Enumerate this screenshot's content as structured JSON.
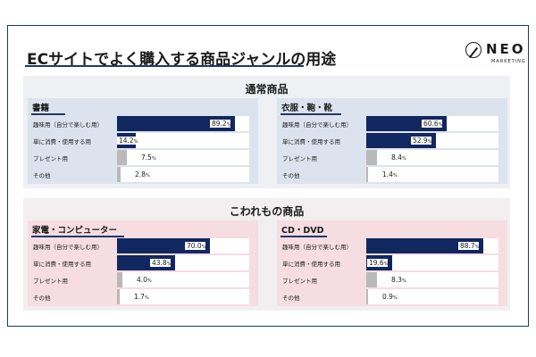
{
  "title": "ECサイトでよく購入する商品ジャンルの用途",
  "logo": {
    "name": "NEO",
    "sub": "MARKETING"
  },
  "sections": [
    {
      "title": "通常商品"
    },
    {
      "title": "こわれもの商品"
    }
  ],
  "chart_data": [
    {
      "type": "bar",
      "orientation": "horizontal",
      "title": "書籍",
      "categories": [
        "趣味用（自分で楽しむ用）",
        "単に消費・使用する用",
        "プレゼント用",
        "その他"
      ],
      "values": [
        89.2,
        14.2,
        7.5,
        2.8
      ],
      "value_labels": [
        "89.2",
        "14.2",
        "7.5",
        "2.8"
      ],
      "unit": "%",
      "xlim": [
        0,
        100
      ]
    },
    {
      "type": "bar",
      "orientation": "horizontal",
      "title": "衣服・鞄・靴",
      "categories": [
        "趣味用（自分で楽しむ用）",
        "単に消費・使用する用",
        "プレゼント用",
        "その他"
      ],
      "values": [
        60.6,
        52.9,
        8.4,
        1.4
      ],
      "value_labels": [
        "60.6",
        "52.9",
        "8.4",
        "1.4"
      ],
      "unit": "%",
      "xlim": [
        0,
        100
      ]
    },
    {
      "type": "bar",
      "orientation": "horizontal",
      "title": "家電・コンピューター",
      "categories": [
        "趣味用（自分で楽しむ用）",
        "単に消費・使用する用",
        "プレゼント用",
        "その他"
      ],
      "values": [
        70.0,
        43.8,
        4.0,
        1.7
      ],
      "value_labels": [
        "70.0",
        "43.8",
        "4.0",
        "1.7"
      ],
      "unit": "%",
      "xlim": [
        0,
        100
      ]
    },
    {
      "type": "bar",
      "orientation": "horizontal",
      "title": "CD・DVD",
      "categories": [
        "趣味用（自分で楽しむ用）",
        "単に消費・使用する用",
        "プレゼント用",
        "その他"
      ],
      "values": [
        88.7,
        19.6,
        8.3,
        0.9
      ],
      "value_labels": [
        "88.7",
        "19.6",
        "8.3",
        "0.9"
      ],
      "unit": "%",
      "xlim": [
        0,
        100
      ]
    }
  ],
  "colors": {
    "major_bar": "#11275f",
    "minor_bar": "#b9b9b9",
    "normal_bg": "#dde3ee",
    "special_bg": "#f6dde2"
  }
}
